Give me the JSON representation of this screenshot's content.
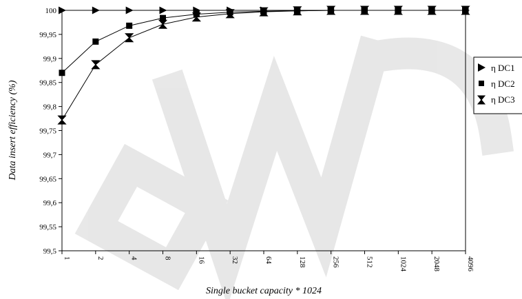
{
  "chart_data": {
    "type": "line",
    "xlabel": "Single bucket capacity * 1024",
    "ylabel": "Data insert efficiency (%)",
    "categories": [
      "1",
      "2",
      "4",
      "8",
      "16",
      "32",
      "64",
      "128",
      "256",
      "512",
      "1024",
      "2048",
      "4096"
    ],
    "ylim": [
      99.5,
      100
    ],
    "yticks": [
      "99,5",
      "99,55",
      "99,6",
      "99,65",
      "99,7",
      "99,75",
      "99,8",
      "99,85",
      "99,9",
      "99,95",
      "100"
    ],
    "ytick_values": [
      99.5,
      99.55,
      99.6,
      99.65,
      99.7,
      99.75,
      99.8,
      99.85,
      99.9,
      99.95,
      100
    ],
    "legend_position": "right",
    "grid": false,
    "series": [
      {
        "name": "η DC1",
        "marker": "triangle-right",
        "values": [
          100,
          100,
          100,
          100,
          100,
          100,
          100,
          100,
          100,
          100,
          100,
          100,
          100
        ]
      },
      {
        "name": "η DC2",
        "marker": "square",
        "values": [
          99.87,
          99.935,
          99.968,
          99.984,
          99.992,
          99.996,
          99.998,
          99.999,
          100,
          100,
          100,
          100,
          100
        ]
      },
      {
        "name": "η DC3",
        "marker": "hourglass",
        "values": [
          99.772,
          99.887,
          99.943,
          99.971,
          99.986,
          99.993,
          99.997,
          99.999,
          100,
          100,
          100,
          100,
          100
        ]
      }
    ]
  }
}
